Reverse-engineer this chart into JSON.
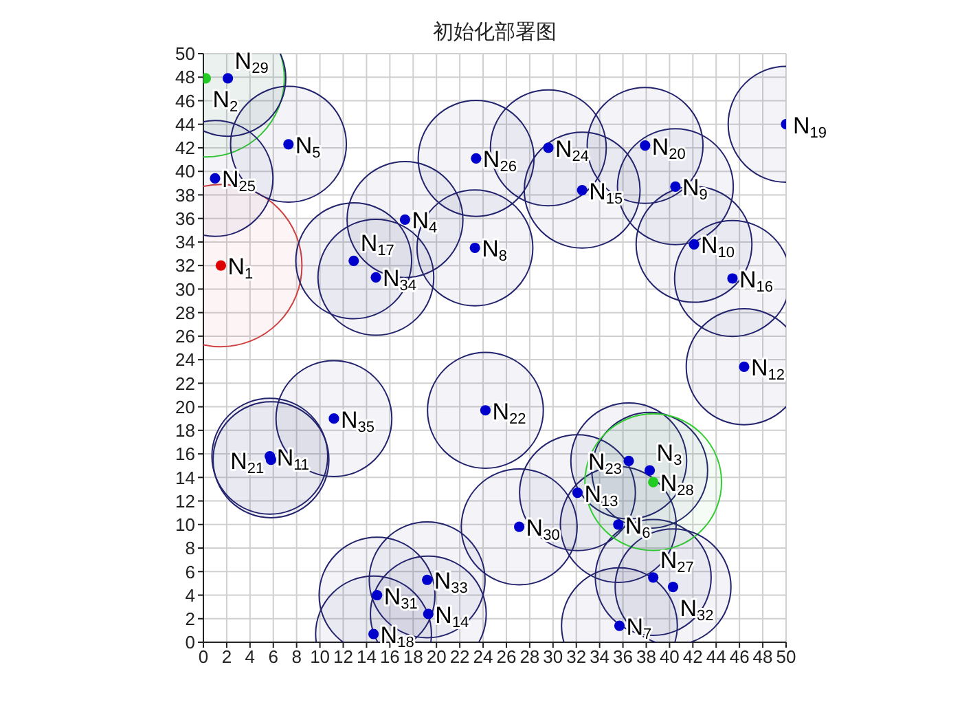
{
  "chart_data": {
    "type": "scatter",
    "title": "初始化部署图",
    "marker": "circle",
    "grid": true,
    "xlim": [
      0,
      50
    ],
    "ylim": [
      0,
      50
    ],
    "xticks": [
      0,
      2,
      4,
      6,
      8,
      10,
      12,
      14,
      16,
      18,
      20,
      22,
      24,
      26,
      28,
      30,
      32,
      34,
      36,
      38,
      40,
      42,
      44,
      46,
      48,
      50
    ],
    "yticks": [
      0,
      2,
      4,
      6,
      8,
      10,
      12,
      14,
      16,
      18,
      20,
      22,
      24,
      26,
      28,
      30,
      32,
      34,
      36,
      38,
      40,
      42,
      44,
      46,
      48,
      50
    ],
    "x": [
      1.5,
      0.2,
      38.3,
      17.3,
      7.3,
      35.6,
      35.7,
      23.3,
      40.5,
      42.1,
      5.7,
      46.4,
      32.1,
      19.3,
      32.5,
      45.4,
      12.9,
      14.6,
      50.0,
      37.9,
      5.8,
      24.2,
      36.5,
      29.6,
      1.0,
      23.4,
      38.6,
      38.6,
      2.1,
      27.1,
      14.9,
      40.3,
      19.2,
      14.8,
      11.2
    ],
    "series": [
      {
        "type": "bubble",
        "values": [
          32.0,
          47.9,
          14.6,
          35.9,
          42.3,
          10.0,
          1.4,
          33.5,
          38.7,
          33.8,
          15.8,
          23.4,
          12.7,
          2.4,
          38.4,
          30.9,
          32.4,
          0.7,
          44.0,
          42.2,
          15.5,
          19.7,
          15.4,
          42.0,
          39.4,
          41.1,
          5.5,
          13.6,
          47.9,
          9.8,
          4.0,
          4.7,
          5.3,
          31.0,
          19.0
        ],
        "sizes": [
          1,
          0.94,
          0.51,
          0.51,
          0.51,
          0.51,
          0.51,
          0.51,
          0.51,
          0.51,
          0.51,
          0.51,
          0.51,
          0.51,
          0.51,
          0.51,
          0.51,
          0.51,
          0.51,
          0.51,
          0.51,
          0.51,
          0.51,
          0.51,
          0.51,
          0.51,
          0.51,
          0.71,
          0.51,
          0.51,
          0.51,
          0.51,
          0.51,
          0.51,
          0.51
        ],
        "colors": [
          "#d04040",
          "#33cc33",
          "#23236e",
          "#23236e",
          "#23236e",
          "#23236e",
          "#23236e",
          "#23236e",
          "#23236e",
          "#23236e",
          "#23236e",
          "#23236e",
          "#23236e",
          "#23236e",
          "#23236e",
          "#23236e",
          "#23236e",
          "#23236e",
          "#23236e",
          "#23236e",
          "#23236e",
          "#23236e",
          "#23236e",
          "#23236e",
          "#23236e",
          "#23236e",
          "#23236e",
          "#33cc33",
          "#23236e",
          "#23236e",
          "#23236e",
          "#23236e",
          "#23236e",
          "#23236e",
          "#23236e"
        ]
      },
      {
        "values": [
          32.0,
          47.9,
          14.6,
          35.9,
          42.3,
          10.0,
          1.4,
          33.5,
          38.7,
          33.8,
          15.8,
          23.4,
          12.7,
          2.4,
          38.4,
          30.9,
          32.4,
          0.7,
          44.0,
          42.2,
          15.5,
          19.7,
          15.4,
          42.0,
          39.4,
          41.1,
          5.5,
          13.6,
          47.9,
          9.8,
          4.0,
          4.7,
          5.3,
          31.0,
          19.0
        ],
        "colors": [
          "#dd0000",
          "#22cc22",
          "#0000cc",
          "#0000cc",
          "#0000cc",
          "#0000cc",
          "#0000cc",
          "#0000cc",
          "#0000cc",
          "#0000cc",
          "#0000cc",
          "#0000cc",
          "#0000cc",
          "#0000cc",
          "#0000cc",
          "#0000cc",
          "#0000cc",
          "#0000cc",
          "#0000cc",
          "#0000cc",
          "#0000cc",
          "#0000cc",
          "#0000cc",
          "#0000cc",
          "#0000cc",
          "#0000cc",
          "#0000cc",
          "#22cc22",
          "#0000cc",
          "#0000cc",
          "#0000cc",
          "#0000cc",
          "#0000cc",
          "#0000cc",
          "#0000cc"
        ]
      }
    ],
    "annotations": [
      {
        "text": "N$_{1}$",
        "x": 1.5,
        "y": 32.0
      },
      {
        "text": "N$_{2}$",
        "x": 0.2,
        "y": 47.9
      },
      {
        "text": "N$_{3}$",
        "x": 38.3,
        "y": 14.6
      },
      {
        "text": "N$_{4}$",
        "x": 17.3,
        "y": 35.9
      },
      {
        "text": "N$_{5}$",
        "x": 7.3,
        "y": 42.3
      },
      {
        "text": "N$_{6}$",
        "x": 35.6,
        "y": 10.0
      },
      {
        "text": "N$_{7}$",
        "x": 35.7,
        "y": 1.4
      },
      {
        "text": "N$_{8}$",
        "x": 23.3,
        "y": 33.5
      },
      {
        "text": "N$_{9}$",
        "x": 40.5,
        "y": 38.7
      },
      {
        "text": "N$_{10}$",
        "x": 42.1,
        "y": 33.8
      },
      {
        "text": "N$_{11}$",
        "x": 5.7,
        "y": 15.8
      },
      {
        "text": "N$_{12}$",
        "x": 46.4,
        "y": 23.4
      },
      {
        "text": "N$_{13}$",
        "x": 32.1,
        "y": 12.7
      },
      {
        "text": "N$_{14}$",
        "x": 19.3,
        "y": 2.4
      },
      {
        "text": "N$_{15}$",
        "x": 32.5,
        "y": 38.4
      },
      {
        "text": "N$_{16}$",
        "x": 45.4,
        "y": 30.9
      },
      {
        "text": "N$_{17}$",
        "x": 12.9,
        "y": 32.4
      },
      {
        "text": "N$_{18}$",
        "x": 14.6,
        "y": 0.7
      },
      {
        "text": "N$_{19}$",
        "x": 50.0,
        "y": 44.0
      },
      {
        "text": "N$_{20}$",
        "x": 37.9,
        "y": 42.2
      },
      {
        "text": "N$_{21}$",
        "x": 5.8,
        "y": 15.5
      },
      {
        "text": "N$_{22}$",
        "x": 24.2,
        "y": 19.7
      },
      {
        "text": "N$_{23}$",
        "x": 36.5,
        "y": 15.4
      },
      {
        "text": "N$_{24}$",
        "x": 29.6,
        "y": 42.0
      },
      {
        "text": "N$_{25}$",
        "x": 1.0,
        "y": 39.4
      },
      {
        "text": "N$_{26}$",
        "x": 23.4,
        "y": 41.1
      },
      {
        "text": "N$_{27}$",
        "x": 38.6,
        "y": 5.5
      },
      {
        "text": "N$_{28}$",
        "x": 38.6,
        "y": 13.6
      },
      {
        "text": "N$_{29}$",
        "x": 2.1,
        "y": 47.9
      },
      {
        "text": "N$_{30}$",
        "x": 27.1,
        "y": 9.8
      },
      {
        "text": "N$_{31}$",
        "x": 14.9,
        "y": 4.0
      },
      {
        "text": "N$_{32}$",
        "x": 40.3,
        "y": 4.7
      },
      {
        "text": "N$_{33}$",
        "x": 19.2,
        "y": 5.3
      },
      {
        "text": "N$_{34}$",
        "x": 14.8,
        "y": 31.0
      },
      {
        "text": "N$_{35}$",
        "x": 11.2,
        "y": 19.0
      }
    ]
  }
}
